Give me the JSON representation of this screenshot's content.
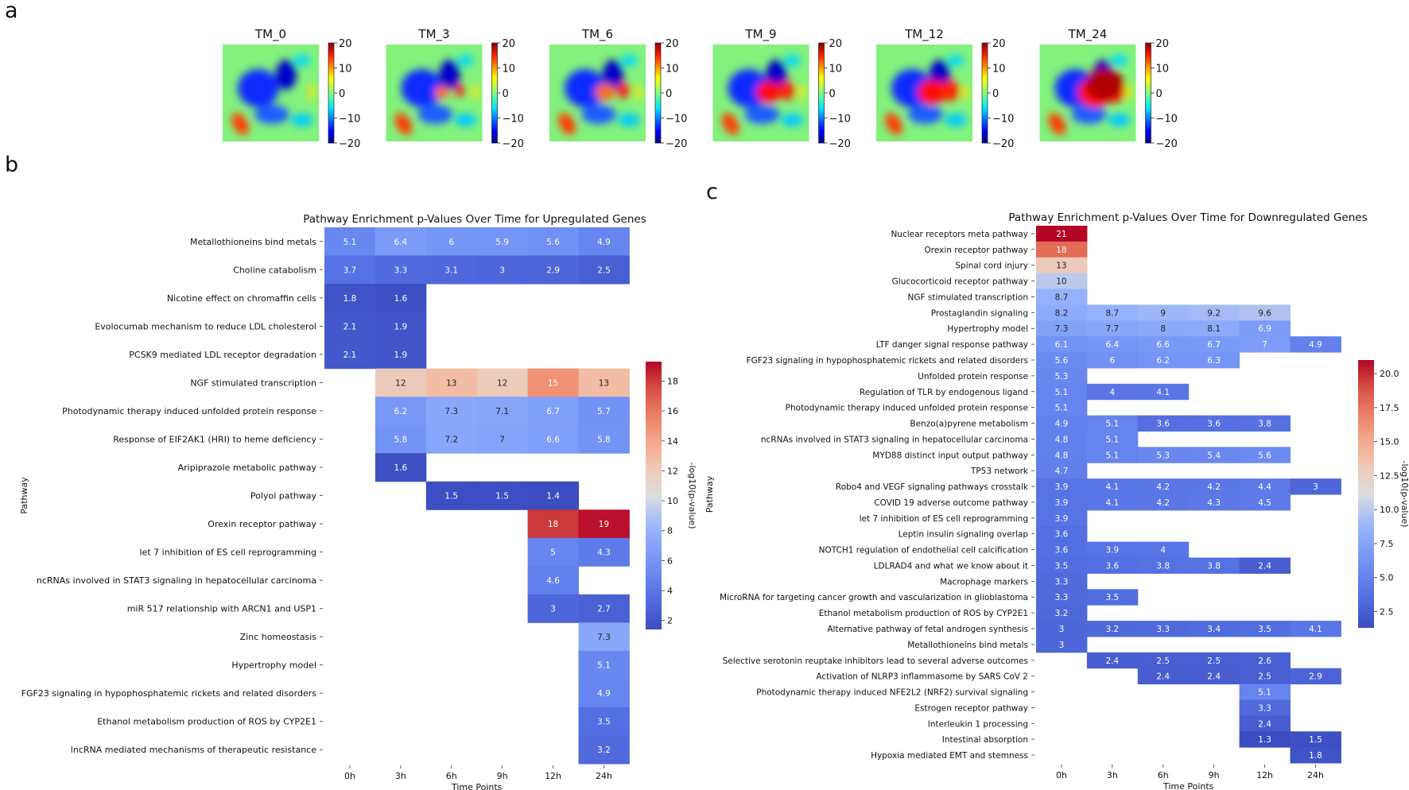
{
  "panels": {
    "a": "a",
    "b": "b",
    "c": "c"
  },
  "colormap": "coolwarm",
  "chart_data": [
    {
      "type": "heatmap",
      "panel": "a",
      "title": "Spatial maps per time point",
      "subplots": [
        {
          "title": "TM_0",
          "level": 0.0
        },
        {
          "title": "TM_3",
          "level": 0.2
        },
        {
          "title": "TM_6",
          "level": 0.4
        },
        {
          "title": "TM_9",
          "level": 0.6
        },
        {
          "title": "TM_12",
          "level": 0.75
        },
        {
          "title": "TM_24",
          "level": 1.0
        }
      ],
      "colorbar_ticks": [
        "20",
        "10",
        "0",
        "−10",
        "−20"
      ],
      "colorbar_range": [
        -20,
        20
      ]
    },
    {
      "type": "heatmap",
      "panel": "b",
      "title": "Pathway Enrichment p-Values Over Time for Upregulated Genes",
      "xlabel": "Time Points",
      "ylabel": "Pathway",
      "colorbar_label": "-log10(p-value)",
      "colorbar_range": [
        1.4,
        19.3
      ],
      "colorbar_ticks": [
        2,
        4,
        6,
        8,
        10,
        12,
        14,
        16,
        18
      ],
      "columns": [
        "0h",
        "3h",
        "6h",
        "9h",
        "12h",
        "24h"
      ],
      "rows": [
        {
          "label": "Metallothioneins bind metals",
          "values": [
            5.1,
            6.4,
            6,
            5.9,
            5.6,
            4.9
          ]
        },
        {
          "label": "Choline catabolism",
          "values": [
            3.7,
            3.3,
            3.1,
            3,
            2.9,
            2.5
          ]
        },
        {
          "label": "Nicotine effect on chromaffin cells",
          "values": [
            1.8,
            1.6,
            null,
            null,
            null,
            null
          ]
        },
        {
          "label": "Evolocumab mechanism to reduce LDL cholesterol",
          "values": [
            2.1,
            1.9,
            null,
            null,
            null,
            null
          ]
        },
        {
          "label": "PCSK9 mediated LDL receptor degradation",
          "values": [
            2.1,
            1.9,
            null,
            null,
            null,
            null
          ]
        },
        {
          "label": "NGF stimulated transcription",
          "values": [
            null,
            12,
            13,
            12,
            15,
            13
          ]
        },
        {
          "label": "Photodynamic therapy induced unfolded protein response",
          "values": [
            null,
            6.2,
            7.3,
            7.1,
            6.7,
            5.7
          ]
        },
        {
          "label": "Response of EIF2AK1 (HRI) to heme deficiency",
          "values": [
            null,
            5.8,
            7.2,
            7,
            6.6,
            5.8
          ]
        },
        {
          "label": "Aripiprazole metabolic pathway",
          "values": [
            null,
            1.6,
            null,
            null,
            null,
            null
          ]
        },
        {
          "label": "Polyol pathway",
          "values": [
            null,
            null,
            1.5,
            1.5,
            1.4,
            null
          ]
        },
        {
          "label": "Orexin receptor pathway",
          "values": [
            null,
            null,
            null,
            null,
            18,
            19
          ]
        },
        {
          "label": "let 7 inhibition of ES cell reprogramming",
          "values": [
            null,
            null,
            null,
            null,
            5,
            4.3
          ]
        },
        {
          "label": "ncRNAs involved in STAT3 signaling in hepatocellular carcinoma",
          "values": [
            null,
            null,
            null,
            null,
            4.6,
            null
          ]
        },
        {
          "label": "miR 517 relationship with ARCN1 and USP1",
          "values": [
            null,
            null,
            null,
            null,
            3,
            2.7
          ]
        },
        {
          "label": "Zinc homeostasis",
          "values": [
            null,
            null,
            null,
            null,
            null,
            7.3
          ]
        },
        {
          "label": "Hypertrophy model",
          "values": [
            null,
            null,
            null,
            null,
            null,
            5.1
          ]
        },
        {
          "label": "FGF23 signaling in hypophosphatemic rickets and related disorders",
          "values": [
            null,
            null,
            null,
            null,
            null,
            4.9
          ]
        },
        {
          "label": "Ethanol metabolism production of ROS by CYP2E1",
          "values": [
            null,
            null,
            null,
            null,
            null,
            3.5
          ]
        },
        {
          "label": "lncRNA mediated mechanisms of therapeutic resistance",
          "values": [
            null,
            null,
            null,
            null,
            null,
            3.2
          ]
        }
      ]
    },
    {
      "type": "heatmap",
      "panel": "c",
      "title": "Pathway Enrichment p-Values Over Time for Downregulated Genes",
      "xlabel": "Time Points",
      "ylabel": "Pathway",
      "colorbar_label": "-log10(p-value)",
      "colorbar_range": [
        1.3,
        21
      ],
      "colorbar_ticks": [
        2.5,
        5.0,
        7.5,
        10.0,
        12.5,
        15.0,
        17.5,
        20.0
      ],
      "columns": [
        "0h",
        "3h",
        "6h",
        "9h",
        "12h",
        "24h"
      ],
      "rows": [
        {
          "label": "Nuclear receptors meta pathway",
          "values": [
            21,
            null,
            null,
            null,
            null,
            null
          ]
        },
        {
          "label": "Orexin receptor pathway",
          "values": [
            18,
            null,
            null,
            null,
            null,
            null
          ]
        },
        {
          "label": "Spinal cord injury",
          "values": [
            13,
            null,
            null,
            null,
            null,
            null
          ]
        },
        {
          "label": "Glucocorticoid receptor pathway",
          "values": [
            10,
            null,
            null,
            null,
            null,
            null
          ]
        },
        {
          "label": "NGF stimulated transcription",
          "values": [
            8.7,
            null,
            null,
            null,
            null,
            null
          ]
        },
        {
          "label": "Prostaglandin signaling",
          "values": [
            8.2,
            8.7,
            9,
            9.2,
            9.6,
            null
          ]
        },
        {
          "label": "Hypertrophy model",
          "values": [
            7.3,
            7.7,
            8,
            8.1,
            6.9,
            null
          ]
        },
        {
          "label": "LTF danger signal response pathway",
          "values": [
            6.1,
            6.4,
            6.6,
            6.7,
            7,
            4.9
          ]
        },
        {
          "label": "FGF23 signaling in hypophosphatemic rickets and related disorders",
          "values": [
            5.6,
            6,
            6.2,
            6.3,
            null,
            null
          ]
        },
        {
          "label": "Unfolded protein response",
          "values": [
            5.3,
            null,
            null,
            null,
            null,
            null
          ]
        },
        {
          "label": "Regulation of TLR by endogenous ligand",
          "values": [
            5.1,
            4,
            4.1,
            null,
            null,
            null
          ]
        },
        {
          "label": "Photodynamic therapy induced unfolded protein response",
          "values": [
            5.1,
            null,
            null,
            null,
            null,
            null
          ]
        },
        {
          "label": "Benzo(a)pyrene metabolism",
          "values": [
            4.9,
            5.1,
            3.6,
            3.6,
            3.8,
            null
          ]
        },
        {
          "label": "ncRNAs involved in STAT3 signaling in hepatocellular carcinoma",
          "values": [
            4.8,
            5.1,
            null,
            null,
            null,
            null
          ]
        },
        {
          "label": "MYD88 distinct input output pathway",
          "values": [
            4.8,
            5.1,
            5.3,
            5.4,
            5.6,
            null
          ]
        },
        {
          "label": "TP53 network",
          "values": [
            4.7,
            null,
            null,
            null,
            null,
            null
          ]
        },
        {
          "label": "Robo4 and VEGF signaling pathways crosstalk",
          "values": [
            3.9,
            4.1,
            4.2,
            4.2,
            4.4,
            3
          ]
        },
        {
          "label": "COVID 19 adverse outcome pathway",
          "values": [
            3.9,
            4.1,
            4.2,
            4.3,
            4.5,
            null
          ]
        },
        {
          "label": "let 7 inhibition of ES cell reprogramming",
          "values": [
            3.9,
            null,
            null,
            null,
            null,
            null
          ]
        },
        {
          "label": "Leptin insulin signaling overlap",
          "values": [
            3.6,
            null,
            null,
            null,
            null,
            null
          ]
        },
        {
          "label": "NOTCH1 regulation of endothelial cell calcification",
          "values": [
            3.6,
            3.9,
            4,
            null,
            null,
            null
          ]
        },
        {
          "label": "LDLRAD4 and what we know about it",
          "values": [
            3.5,
            3.6,
            3.8,
            3.8,
            2.4,
            null
          ]
        },
        {
          "label": "Macrophage markers",
          "values": [
            3.3,
            null,
            null,
            null,
            null,
            null
          ]
        },
        {
          "label": "MicroRNA for targeting cancer growth and vascularization in glioblastoma",
          "values": [
            3.3,
            3.5,
            null,
            null,
            null,
            null
          ]
        },
        {
          "label": "Ethanol metabolism production of ROS by CYP2E1",
          "values": [
            3.2,
            null,
            null,
            null,
            null,
            null
          ]
        },
        {
          "label": "Alternative pathway of fetal androgen synthesis",
          "values": [
            3,
            3.2,
            3.3,
            3.4,
            3.5,
            4.1
          ]
        },
        {
          "label": "Metallothioneins bind metals",
          "values": [
            3,
            null,
            null,
            null,
            null,
            null
          ]
        },
        {
          "label": "Selective serotonin reuptake inhibitors lead to several adverse outcomes",
          "values": [
            null,
            2.4,
            2.5,
            2.5,
            2.6,
            null
          ]
        },
        {
          "label": "Activation of NLRP3 inflammasome by SARS CoV 2",
          "values": [
            null,
            null,
            2.4,
            2.4,
            2.5,
            2.9
          ]
        },
        {
          "label": "Photodynamic therapy induced NFE2L2 (NRF2) survival signaling",
          "values": [
            null,
            null,
            null,
            null,
            5.1,
            null
          ]
        },
        {
          "label": "Estrogen receptor pathway",
          "values": [
            null,
            null,
            null,
            null,
            3.3,
            null
          ]
        },
        {
          "label": "Interleukin 1 processing",
          "values": [
            null,
            null,
            null,
            null,
            2.4,
            null
          ]
        },
        {
          "label": "Intestinal absorption",
          "values": [
            null,
            null,
            null,
            null,
            1.3,
            1.5
          ]
        },
        {
          "label": "Hypoxia mediated EMT and stemness",
          "values": [
            null,
            null,
            null,
            null,
            null,
            1.8
          ]
        }
      ]
    }
  ]
}
